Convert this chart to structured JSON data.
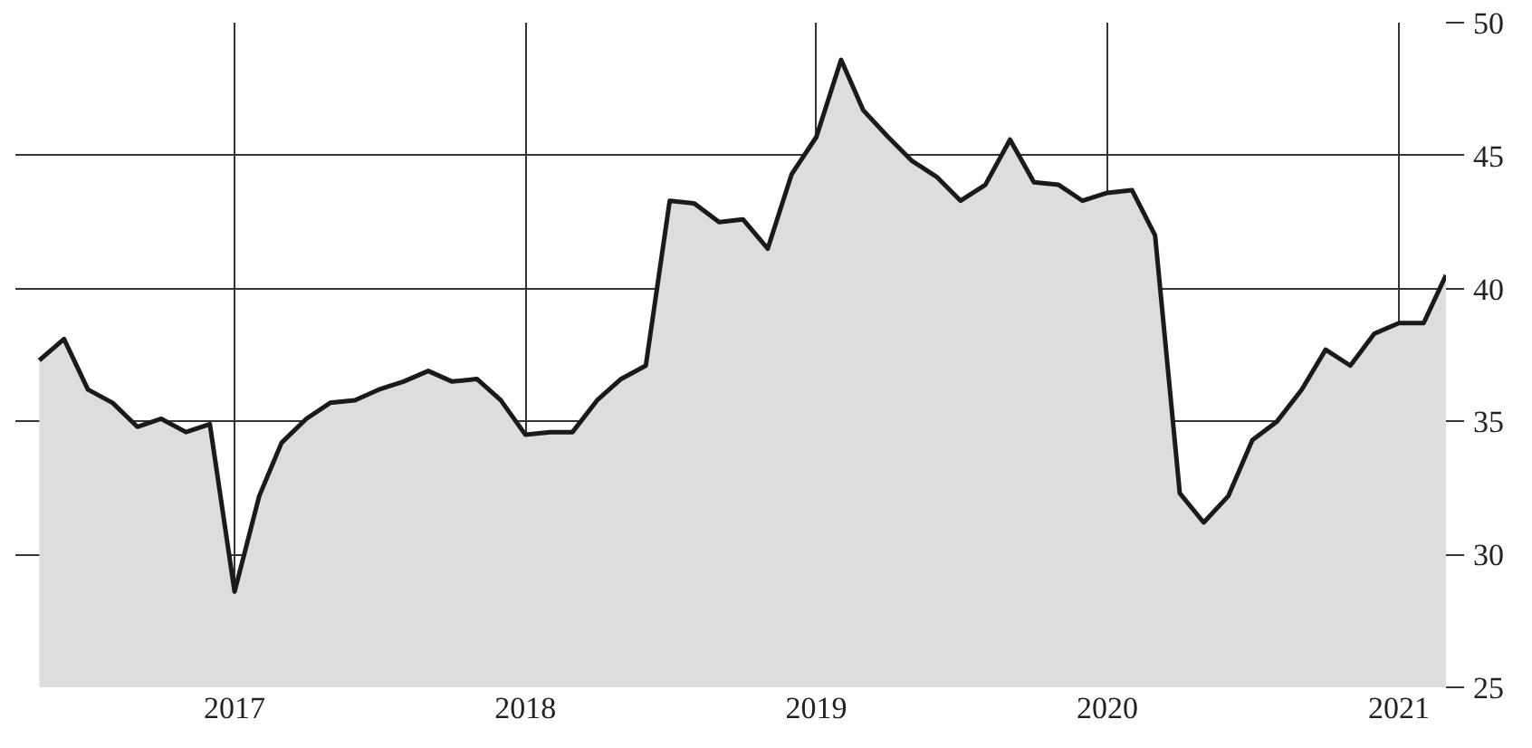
{
  "chart_data": {
    "type": "area",
    "x": [
      "2016-05",
      "2016-06",
      "2016-07",
      "2016-08",
      "2016-09",
      "2016-10",
      "2016-11",
      "2016-12",
      "2017-01",
      "2017-02",
      "2017-03",
      "2017-04",
      "2017-05",
      "2017-06",
      "2017-07",
      "2017-08",
      "2017-09",
      "2017-10",
      "2017-11",
      "2017-12",
      "2018-01",
      "2018-02",
      "2018-03",
      "2018-04",
      "2018-05",
      "2018-06",
      "2018-07",
      "2018-08",
      "2018-09",
      "2018-10",
      "2018-11",
      "2018-12",
      "2019-01",
      "2019-02",
      "2019-03",
      "2019-04",
      "2019-05",
      "2019-06",
      "2019-07",
      "2019-08",
      "2019-09",
      "2019-10",
      "2019-11",
      "2019-12",
      "2020-01",
      "2020-02",
      "2020-03",
      "2020-04",
      "2020-05",
      "2020-06",
      "2020-07",
      "2020-08",
      "2020-09",
      "2020-10",
      "2020-11",
      "2020-12",
      "2021-01",
      "2021-02",
      "2021-03"
    ],
    "series": [
      {
        "color": "#dcdddf",
        "values": [
          37.3,
          38.1,
          36.2,
          35.7,
          34.8,
          35.1,
          34.6,
          34.9,
          28.6,
          32.2,
          34.2,
          35.1,
          35.7,
          35.8,
          36.2,
          36.5,
          36.9,
          36.5,
          36.6,
          35.8,
          34.5,
          34.6,
          34.6,
          35.8,
          36.6,
          37.1,
          43.3,
          43.2,
          42.5,
          42.6,
          41.5,
          44.3,
          45.7,
          48.6,
          46.7,
          45.7,
          44.8,
          44.2,
          43.3,
          43.9,
          45.6,
          44.0,
          43.9,
          43.3,
          43.6,
          43.7,
          42.0,
          32.3,
          31.2,
          32.2,
          34.3,
          35.0,
          36.2,
          37.7,
          37.1,
          38.3,
          38.7,
          38.7,
          40.5
        ]
      }
    ],
    "xlim": [
      "2016-04",
      "2021-03"
    ],
    "xticks": [
      {
        "value": "2017-01",
        "label": "2017"
      },
      {
        "value": "2018-01",
        "label": "2018"
      },
      {
        "value": "2019-01",
        "label": "2019"
      },
      {
        "value": "2020-01",
        "label": "2020"
      },
      {
        "value": "2021-01",
        "label": "2021"
      }
    ],
    "ylim": [
      25,
      50
    ],
    "yticks": [
      25,
      30,
      35,
      40,
      45,
      50
    ],
    "grid": true
  }
}
